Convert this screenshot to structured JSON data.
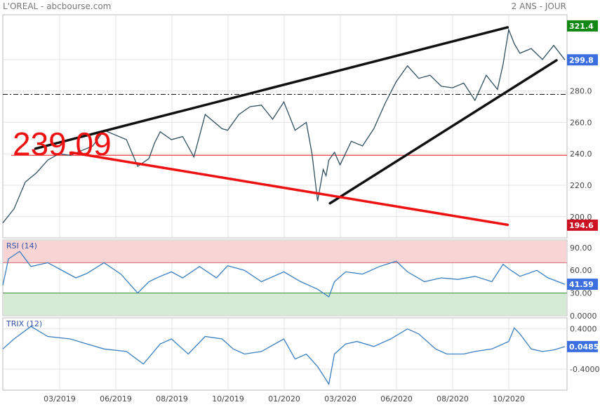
{
  "header": {
    "title": "L'OREAL - abcbourse.com",
    "period": "2 ANS - JOUR"
  },
  "colors": {
    "price_line": "#2f4f5f",
    "indicator_line": "#3a7fc1",
    "trend_black": "#111111",
    "trend_red": "#ee1111",
    "badge_high": "#118811",
    "badge_low": "#cc1122",
    "badge_current": "#3b6fe0",
    "rsi_overbought_zone": "#f9d4d4",
    "rsi_oversold_zone": "#d5ebd5"
  },
  "chart_data": [
    {
      "type": "line",
      "title": "",
      "annotation_text": "239.09",
      "y_ticks": [
        "200.0",
        "220.0",
        "240.0",
        "260.0",
        "280.0",
        "300.0"
      ],
      "x_ticks": [
        "03/2019",
        "06/2019",
        "08/2019",
        "10/2019",
        "01/2020",
        "03/2020",
        "06/2020",
        "08/2020",
        "10/2020"
      ],
      "ylim": [
        186.5,
        328.5
      ],
      "badges": {
        "high": "321.4",
        "current": "299.8",
        "low": "194.6"
      },
      "horizontal_lines": [
        {
          "value": 239.09,
          "color": "red"
        },
        {
          "value": 277.8,
          "style": "dash-dot",
          "color": "black"
        }
      ],
      "trendlines": [
        {
          "color": "black",
          "points": [
            [
              0.058,
              243.3
            ],
            [
              0.898,
              320.5
            ]
          ]
        },
        {
          "color": "black",
          "points": [
            [
              0.582,
              208.5
            ],
            [
              0.985,
              299.5
            ]
          ]
        },
        {
          "color": "red",
          "points": [
            [
              0.122,
              240.8
            ],
            [
              0.898,
              194.8
            ]
          ]
        }
      ],
      "x": [
        0.0,
        0.02,
        0.04,
        0.06,
        0.08,
        0.1,
        0.12,
        0.14,
        0.16,
        0.18,
        0.2,
        0.22,
        0.24,
        0.26,
        0.27,
        0.28,
        0.3,
        0.32,
        0.34,
        0.36,
        0.38,
        0.39,
        0.4,
        0.42,
        0.44,
        0.46,
        0.48,
        0.5,
        0.52,
        0.54,
        0.55,
        0.56,
        0.57,
        0.575,
        0.58,
        0.59,
        0.6,
        0.62,
        0.64,
        0.66,
        0.68,
        0.7,
        0.72,
        0.74,
        0.76,
        0.78,
        0.8,
        0.82,
        0.84,
        0.86,
        0.88,
        0.89,
        0.9,
        0.91,
        0.92,
        0.94,
        0.96,
        0.98,
        1.0
      ],
      "values": [
        196,
        205,
        222,
        228,
        236,
        240,
        239,
        242,
        245,
        255,
        252,
        249,
        232,
        237,
        247,
        254,
        249,
        251,
        238,
        265,
        259,
        256,
        255,
        265,
        270,
        271,
        262,
        273,
        255,
        260,
        240,
        210,
        230,
        226,
        236,
        241,
        233,
        248,
        245,
        256,
        272,
        286,
        296,
        288,
        290,
        283,
        282,
        285,
        274,
        290,
        281,
        297,
        319,
        310,
        304,
        307,
        300,
        309,
        299.8
      ]
    },
    {
      "type": "line",
      "title": "RSI (14)",
      "y_ticks": [
        "90.00",
        "60.00",
        "30.00",
        "0.0000"
      ],
      "ylim": [
        0,
        100
      ],
      "current_value": "41.59",
      "zones": {
        "overbought": 70,
        "oversold": 30
      },
      "x": [
        0.0,
        0.01,
        0.03,
        0.05,
        0.08,
        0.1,
        0.13,
        0.15,
        0.18,
        0.21,
        0.24,
        0.26,
        0.28,
        0.3,
        0.32,
        0.35,
        0.38,
        0.4,
        0.43,
        0.46,
        0.5,
        0.53,
        0.56,
        0.58,
        0.59,
        0.61,
        0.64,
        0.67,
        0.7,
        0.72,
        0.75,
        0.78,
        0.81,
        0.84,
        0.87,
        0.89,
        0.9,
        0.92,
        0.95,
        0.97,
        1.0
      ],
      "values": [
        40,
        75,
        85,
        65,
        70,
        62,
        50,
        56,
        70,
        55,
        30,
        45,
        52,
        58,
        50,
        65,
        50,
        66,
        60,
        45,
        58,
        45,
        35,
        25,
        45,
        58,
        55,
        65,
        72,
        58,
        45,
        50,
        48,
        52,
        45,
        68,
        62,
        52,
        60,
        50,
        41.59
      ]
    },
    {
      "type": "line",
      "title": "TRIX (12)",
      "y_ticks": [
        "0.4000",
        "-0.4000"
      ],
      "ylim": [
        -0.82,
        0.62
      ],
      "current_value": "0.0485",
      "x": [
        0.0,
        0.02,
        0.05,
        0.08,
        0.12,
        0.15,
        0.18,
        0.22,
        0.25,
        0.28,
        0.3,
        0.33,
        0.36,
        0.39,
        0.41,
        0.43,
        0.46,
        0.5,
        0.52,
        0.54,
        0.56,
        0.58,
        0.59,
        0.61,
        0.63,
        0.66,
        0.69,
        0.72,
        0.74,
        0.77,
        0.79,
        0.82,
        0.84,
        0.87,
        0.9,
        0.91,
        0.92,
        0.94,
        0.96,
        0.98,
        1.0
      ],
      "values": [
        0.0,
        0.2,
        0.45,
        0.25,
        0.2,
        0.1,
        0.0,
        -0.05,
        -0.3,
        0.1,
        0.2,
        -0.1,
        0.25,
        0.2,
        0.0,
        -0.1,
        -0.05,
        0.2,
        -0.2,
        -0.1,
        -0.35,
        -0.7,
        -0.1,
        0.1,
        0.15,
        0.05,
        0.2,
        0.4,
        0.3,
        0.0,
        -0.1,
        -0.1,
        -0.05,
        0.0,
        0.15,
        0.42,
        0.3,
        0.0,
        -0.05,
        -0.02,
        0.0485
      ]
    }
  ]
}
